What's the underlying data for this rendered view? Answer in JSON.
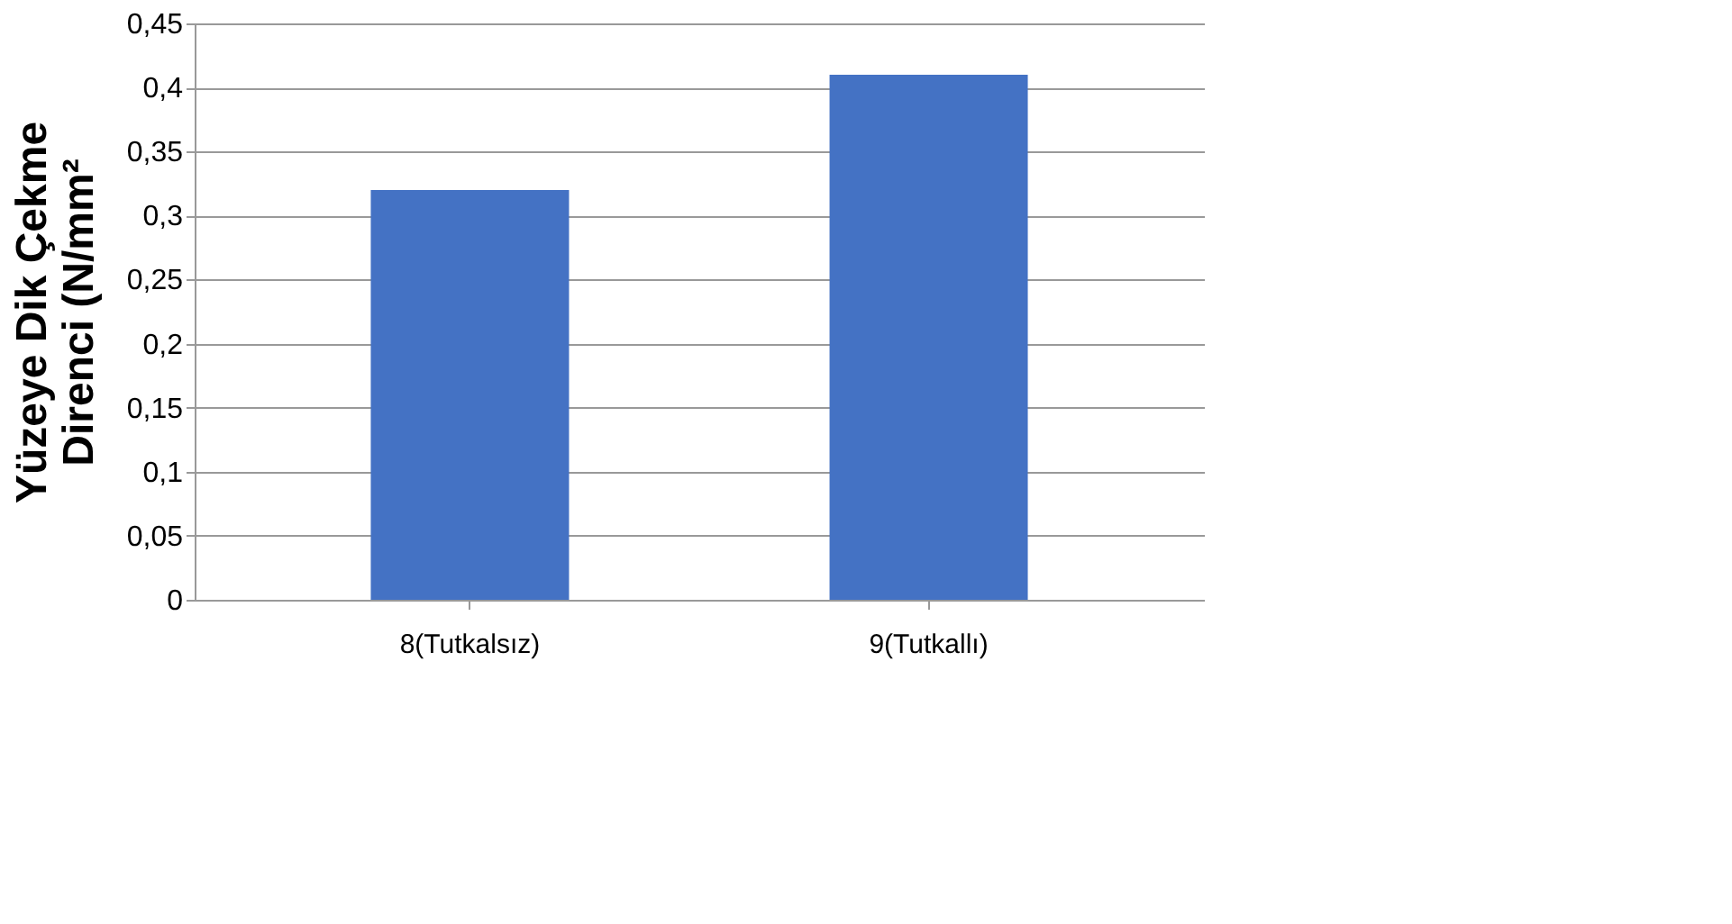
{
  "chart_data": {
    "type": "bar",
    "ylabel": "Yüzeye Dik Çekme\nDirenci (N/mm²",
    "categories": [
      "8(Tutkalsız)",
      "9(Tutkallı)"
    ],
    "values": [
      0.32,
      0.41
    ],
    "color": "#4472c4",
    "ylim": [
      0,
      0.45
    ],
    "yticks": [
      0,
      {
        "value": 0.05,
        "label": "0,05"
      },
      {
        "value": 0.1,
        "label": "0,1"
      },
      {
        "value": 0.15,
        "label": "0,15"
      },
      {
        "value": 0.2,
        "label": "0,2"
      },
      {
        "value": 0.25,
        "label": "0,25"
      },
      {
        "value": 0.3,
        "label": "0,3"
      },
      {
        "value": 0.35,
        "label": "0,35"
      },
      {
        "value": 0.4,
        "label": "0,4"
      },
      {
        "value": 0.45,
        "label": "0,45"
      }
    ],
    "grid": "y"
  }
}
